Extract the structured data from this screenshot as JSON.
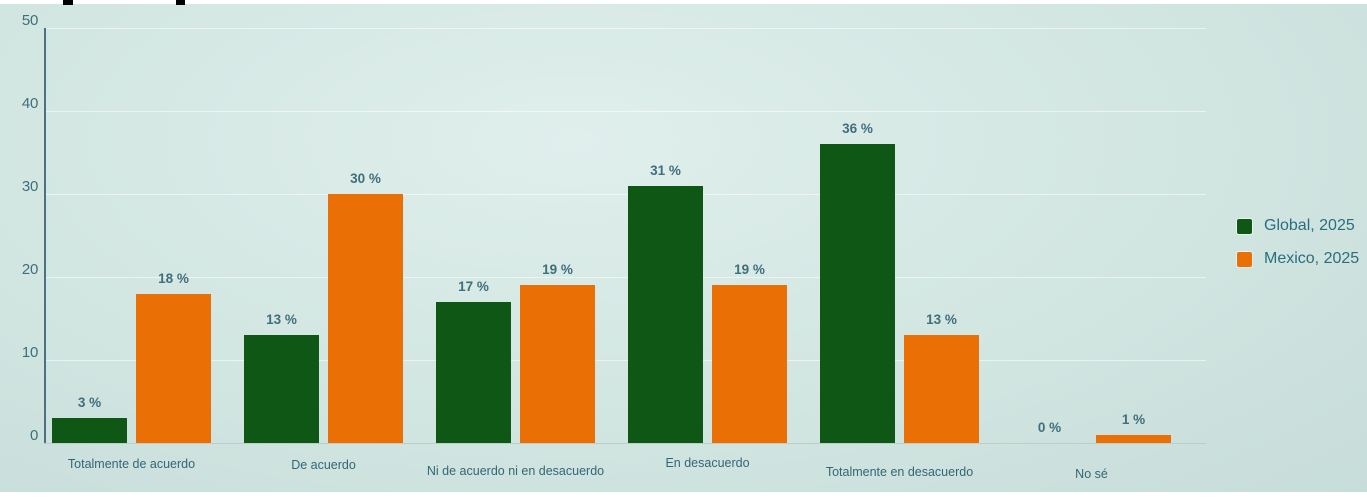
{
  "page": {
    "top_edge_note": "cropped black title text fragments at top edge"
  },
  "chart_data": {
    "type": "bar",
    "title": "",
    "xlabel": "",
    "ylabel": "",
    "categories": [
      "Totalmente de acuerdo",
      "De acuerdo",
      "Ni de acuerdo ni en desacuerdo",
      "En desacuerdo",
      "Totalmente en desacuerdo",
      "No sé"
    ],
    "series": [
      {
        "name": "Global, 2025",
        "color": "#0e5714",
        "values": [
          3,
          13,
          17,
          31,
          36,
          0
        ]
      },
      {
        "name": "Mexico, 2025",
        "color": "#ea7006",
        "values": [
          18,
          30,
          19,
          19,
          13,
          1
        ]
      }
    ],
    "value_suffix": " %",
    "yticks": [
      0,
      10,
      20,
      30,
      40,
      50
    ],
    "ylim": [
      0,
      50
    ],
    "grid": true,
    "legend_position": "right",
    "colors": {
      "background_center": "#e0efec",
      "background_edge": "#c7ddd9",
      "axis_line": "#4a7282",
      "baseline": "#bccdca",
      "gridline": "rgba(255,255,255,0.55)",
      "value_label_text": "#3f6e7c",
      "tick_text": "#3f6e7c",
      "category_text": "#336676",
      "legend_text": "#2a6e80"
    }
  }
}
